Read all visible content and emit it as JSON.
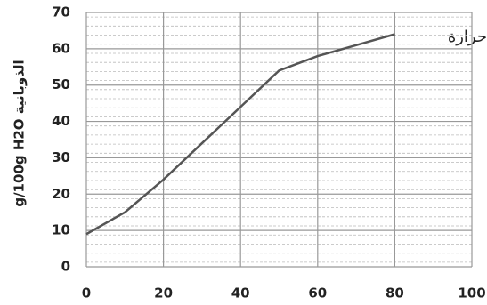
{
  "chart_data": {
    "type": "line",
    "y_label": "g/100g H2O الذوبانية",
    "annotation": "حرارة",
    "x": [
      0,
      10,
      20,
      30,
      40,
      50,
      60,
      70,
      80
    ],
    "series": [
      {
        "color": "#555555",
        "values": [
          9,
          15,
          24,
          34,
          44,
          54,
          58,
          61,
          64
        ]
      }
    ],
    "xlim": [
      0,
      100
    ],
    "xticks": [
      0,
      20,
      40,
      60,
      80,
      100
    ],
    "ylim": [
      0,
      70
    ],
    "yticks": [
      0,
      10,
      20,
      30,
      40,
      50,
      60,
      70
    ],
    "grid": true
  }
}
